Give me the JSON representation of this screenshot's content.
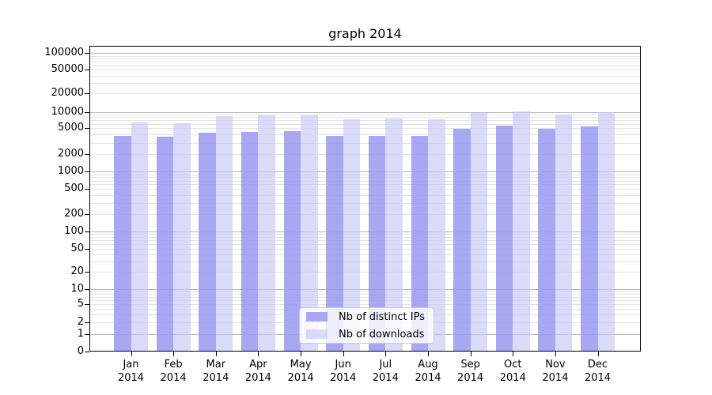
{
  "figure": {
    "background": "#ffffff",
    "text_color": "#000000"
  },
  "chart_data": {
    "type": "bar",
    "title": "graph 2014",
    "categories": [
      "Jan",
      "Feb",
      "Mar",
      "Apr",
      "May",
      "Jun",
      "Jul",
      "Aug",
      "Sep",
      "Oct",
      "Nov",
      "Dec"
    ],
    "category_year": "2014",
    "series": [
      {
        "name": "Nb of distinct IPs",
        "color": "rgba(153,153,240,0.85)",
        "values": [
          3850,
          3750,
          4300,
          4450,
          4550,
          3900,
          3900,
          3850,
          5000,
          5700,
          5000,
          5450
        ]
      },
      {
        "name": "Nb of downloads",
        "color": "rgba(198,198,246,0.65)",
        "values": [
          6550,
          6400,
          8600,
          8800,
          8800,
          7500,
          7750,
          7550,
          9800,
          10500,
          9000,
          10200
        ]
      }
    ],
    "xlabel": "",
    "ylabel": "",
    "yscale": "symlog",
    "yticks": [
      0,
      1,
      2,
      5,
      10,
      20,
      50,
      100,
      200,
      500,
      1000,
      2000,
      5000,
      10000,
      20000,
      50000,
      100000
    ],
    "ylim": [
      0,
      134000
    ],
    "grid": {
      "orientation": "horizontal",
      "major_color": "#b8b8b8",
      "minor_color": "#e4e4e4"
    },
    "legend": {
      "position": "lower center",
      "border_color": "#cccccc",
      "background": "rgba(255,255,255,0.8)"
    }
  }
}
